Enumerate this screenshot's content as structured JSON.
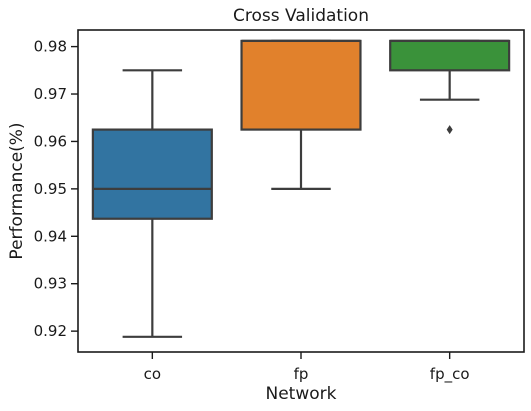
{
  "chart_data": {
    "type": "box",
    "title": "Cross Validation",
    "xlabel": "Network",
    "ylabel": "Performance(%)",
    "categories": [
      "co",
      "fp",
      "fp_co"
    ],
    "ylim": [
      0.9156,
      0.9835
    ],
    "yticks": [
      0.92,
      0.93,
      0.94,
      0.95,
      0.96,
      0.97,
      0.98
    ],
    "ytick_labels": [
      "0.92",
      "0.93",
      "0.94",
      "0.95",
      "0.96",
      "0.97",
      "0.98"
    ],
    "grid": false,
    "boxes": [
      {
        "category": "co",
        "whisker_low": 0.9188,
        "q1": 0.9437,
        "median": 0.95,
        "q3": 0.9625,
        "whisker_high": 0.975,
        "outliers": [],
        "color": "#3274a1"
      },
      {
        "category": "fp",
        "whisker_low": 0.95,
        "q1": 0.9625,
        "median": 0.9812,
        "q3": 0.9812,
        "whisker_high": 0.9812,
        "outliers": [],
        "color": "#e1812c"
      },
      {
        "category": "fp_co",
        "whisker_low": 0.9688,
        "q1": 0.975,
        "median": 0.9812,
        "q3": 0.9812,
        "whisker_high": 0.9812,
        "outliers": [
          0.9625
        ],
        "color": "#3a923a"
      }
    ]
  }
}
